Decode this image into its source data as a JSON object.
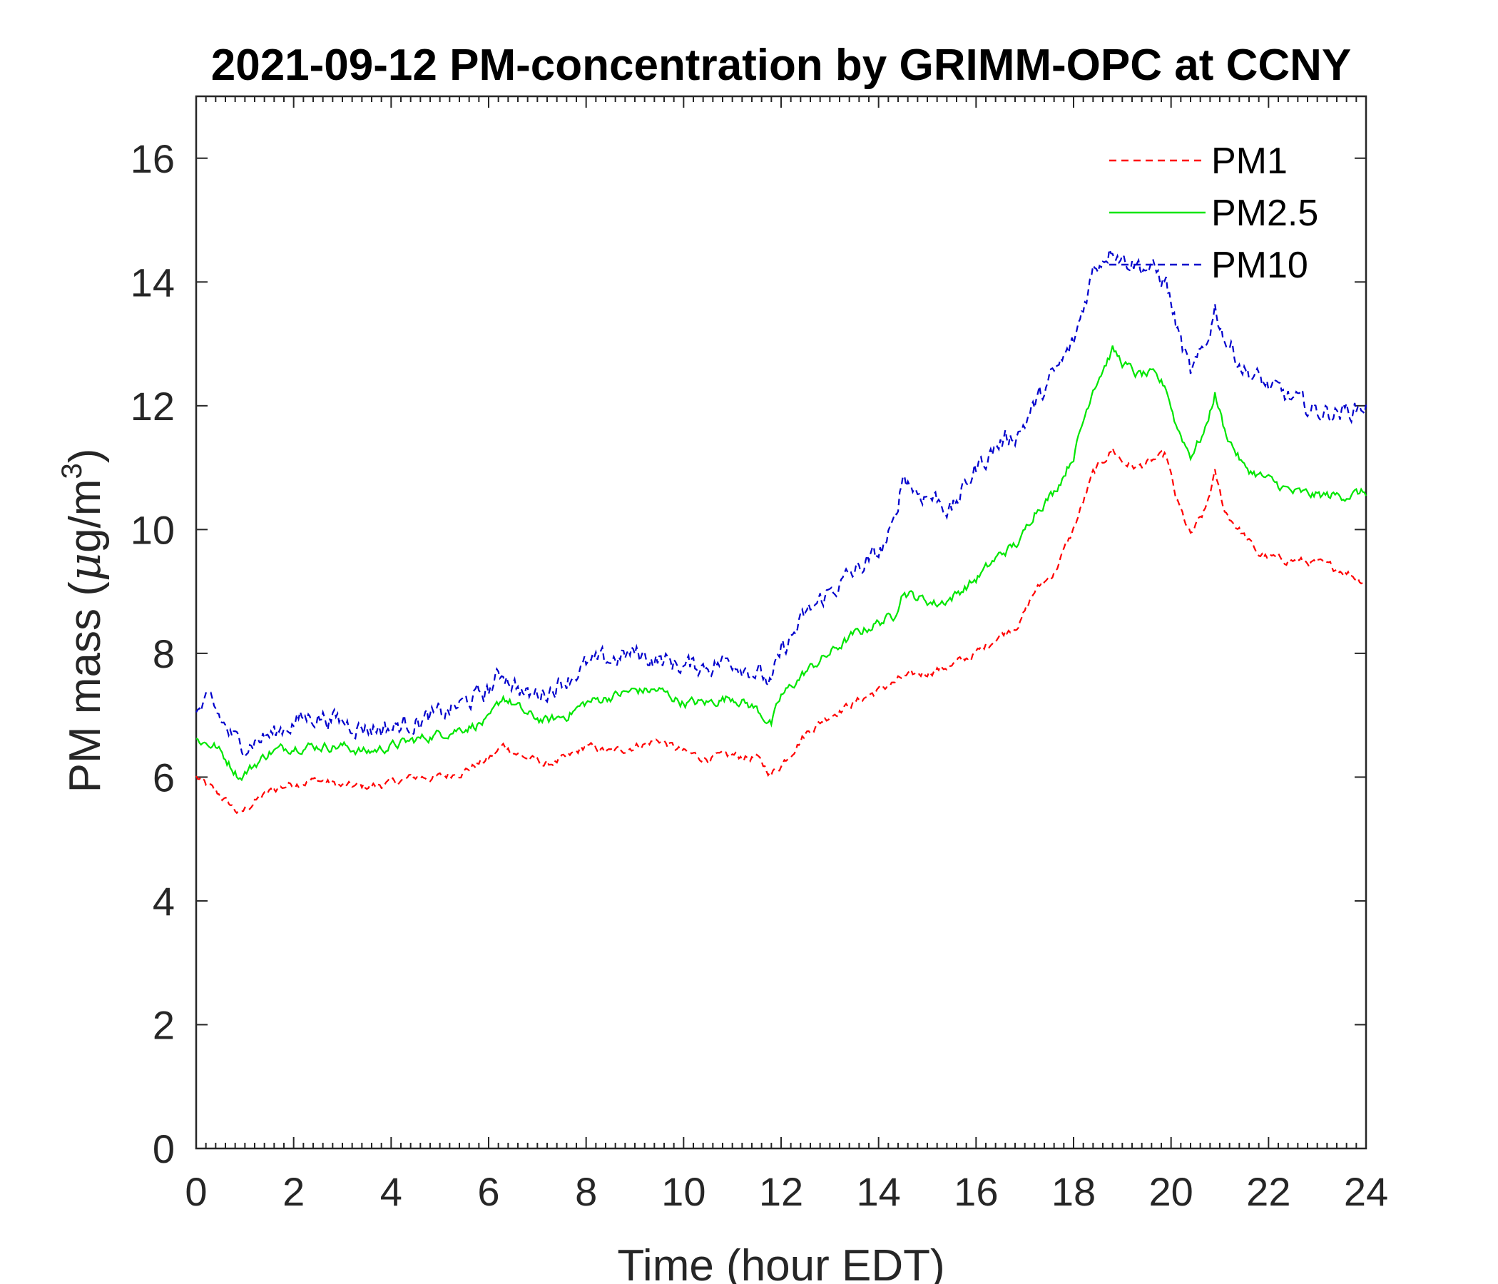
{
  "chart_data": {
    "type": "line",
    "title": "2021-09-12 PM-concentration by GRIMM-OPC at CCNY",
    "xlabel": "Time (hour EDT)",
    "ylabel": {
      "prefix": "PM mass (",
      "mu": "μ",
      "unit": "g/m",
      "sup": "3",
      "suffix": ")"
    },
    "xlim": [
      0,
      24
    ],
    "ylim": [
      0,
      17
    ],
    "xticks": [
      "0",
      "2",
      "4",
      "6",
      "8",
      "10",
      "12",
      "14",
      "16",
      "18",
      "20",
      "22",
      "24"
    ],
    "yticks": [
      "0",
      "2",
      "4",
      "6",
      "8",
      "10",
      "12",
      "14",
      "16"
    ],
    "legend_position": "top-right",
    "series": [
      {
        "name": "PM1",
        "color": "#ff0000",
        "style": "dashed",
        "x": [
          0,
          0.5,
          0.9,
          1.2,
          1.6,
          2,
          2.5,
          3,
          3.5,
          4,
          4.5,
          5,
          5.5,
          6,
          6.3,
          6.8,
          7.2,
          7.6,
          8,
          8.5,
          9,
          9.5,
          10,
          10.5,
          11,
          11.5,
          11.8,
          12,
          12.5,
          13,
          13.5,
          14,
          14.5,
          15,
          15.5,
          16,
          16.5,
          16.9,
          17.2,
          17.6,
          18,
          18.4,
          18.8,
          19,
          19.3,
          19.6,
          19.9,
          20.1,
          20.4,
          20.7,
          20.9,
          21.1,
          21.5,
          21.8,
          22,
          22.5,
          23,
          23.5,
          24
        ],
        "y": [
          6.0,
          5.7,
          5.4,
          5.6,
          5.8,
          5.9,
          5.95,
          5.85,
          5.85,
          5.9,
          6.0,
          6.0,
          6.1,
          6.3,
          6.5,
          6.3,
          6.2,
          6.3,
          6.5,
          6.4,
          6.5,
          6.6,
          6.4,
          6.3,
          6.35,
          6.3,
          6.05,
          6.2,
          6.7,
          7.0,
          7.2,
          7.4,
          7.6,
          7.7,
          7.8,
          8.0,
          8.3,
          8.5,
          9.0,
          9.3,
          10.0,
          10.9,
          11.3,
          11.1,
          11.0,
          11.1,
          11.2,
          10.5,
          9.9,
          10.3,
          10.9,
          10.3,
          9.9,
          9.6,
          9.55,
          9.5,
          9.45,
          9.35,
          9.15
        ]
      },
      {
        "name": "PM2.5",
        "color": "#00e600",
        "style": "solid",
        "x": [
          0,
          0.4,
          0.6,
          0.9,
          1.2,
          1.5,
          2,
          2.5,
          3,
          3.5,
          4,
          4.5,
          5,
          5.5,
          6,
          6.3,
          6.8,
          7.2,
          7.6,
          8,
          8.5,
          9,
          9.5,
          10,
          10.5,
          11,
          11.5,
          11.8,
          12,
          12.5,
          13,
          13.5,
          14,
          14.3,
          14.5,
          14.8,
          15.2,
          15.5,
          16,
          16.5,
          16.9,
          17.2,
          17.6,
          18,
          18.4,
          18.8,
          19,
          19.3,
          19.6,
          19.9,
          20.1,
          20.4,
          20.7,
          20.9,
          21.1,
          21.5,
          22,
          22.5,
          23,
          23.5,
          24
        ],
        "y": [
          6.6,
          6.5,
          6.3,
          6.0,
          6.2,
          6.4,
          6.5,
          6.5,
          6.5,
          6.4,
          6.5,
          6.6,
          6.7,
          6.8,
          6.9,
          7.3,
          7.0,
          6.9,
          7.0,
          7.2,
          7.3,
          7.4,
          7.4,
          7.2,
          7.2,
          7.3,
          7.1,
          6.85,
          7.3,
          7.7,
          8.0,
          8.3,
          8.5,
          8.6,
          9.0,
          8.9,
          8.8,
          8.9,
          9.2,
          9.6,
          9.8,
          10.3,
          10.6,
          11.2,
          12.3,
          12.9,
          12.7,
          12.5,
          12.5,
          12.3,
          11.7,
          11.2,
          11.6,
          12.2,
          11.6,
          11.0,
          10.8,
          10.6,
          10.55,
          10.55,
          10.6
        ]
      },
      {
        "name": "PM10",
        "color": "#0000cc",
        "style": "dashed",
        "x": [
          0,
          0.3,
          0.6,
          0.9,
          1.2,
          1.6,
          2,
          2.5,
          3,
          3.5,
          4,
          4.5,
          5,
          5.5,
          6,
          6.3,
          6.8,
          7.2,
          7.6,
          8,
          8.5,
          9,
          9.5,
          10,
          10.5,
          11,
          11.5,
          11.8,
          12,
          12.5,
          13,
          13.5,
          14,
          14.3,
          14.5,
          14.8,
          15.2,
          15.5,
          16,
          16.5,
          16.9,
          17.2,
          17.6,
          18,
          18.4,
          18.8,
          19,
          19.3,
          19.6,
          19.9,
          20.1,
          20.4,
          20.7,
          20.9,
          21.1,
          21.5,
          22,
          22.5,
          23,
          23.5,
          24
        ],
        "y": [
          7.0,
          7.2,
          6.8,
          6.5,
          6.6,
          6.7,
          6.9,
          7.0,
          6.9,
          6.8,
          6.8,
          6.9,
          7.0,
          7.2,
          7.4,
          7.7,
          7.3,
          7.4,
          7.6,
          7.8,
          7.9,
          8.0,
          7.9,
          7.8,
          7.8,
          7.9,
          7.7,
          7.5,
          8.0,
          8.6,
          9.0,
          9.3,
          9.6,
          10.0,
          10.9,
          10.6,
          10.5,
          10.3,
          11.0,
          11.4,
          11.6,
          12.0,
          12.5,
          13.0,
          14.2,
          14.6,
          14.4,
          14.3,
          14.2,
          14.0,
          13.3,
          12.5,
          12.9,
          13.6,
          13.1,
          12.6,
          12.3,
          12.1,
          11.9,
          11.9,
          12.0
        ]
      }
    ]
  }
}
